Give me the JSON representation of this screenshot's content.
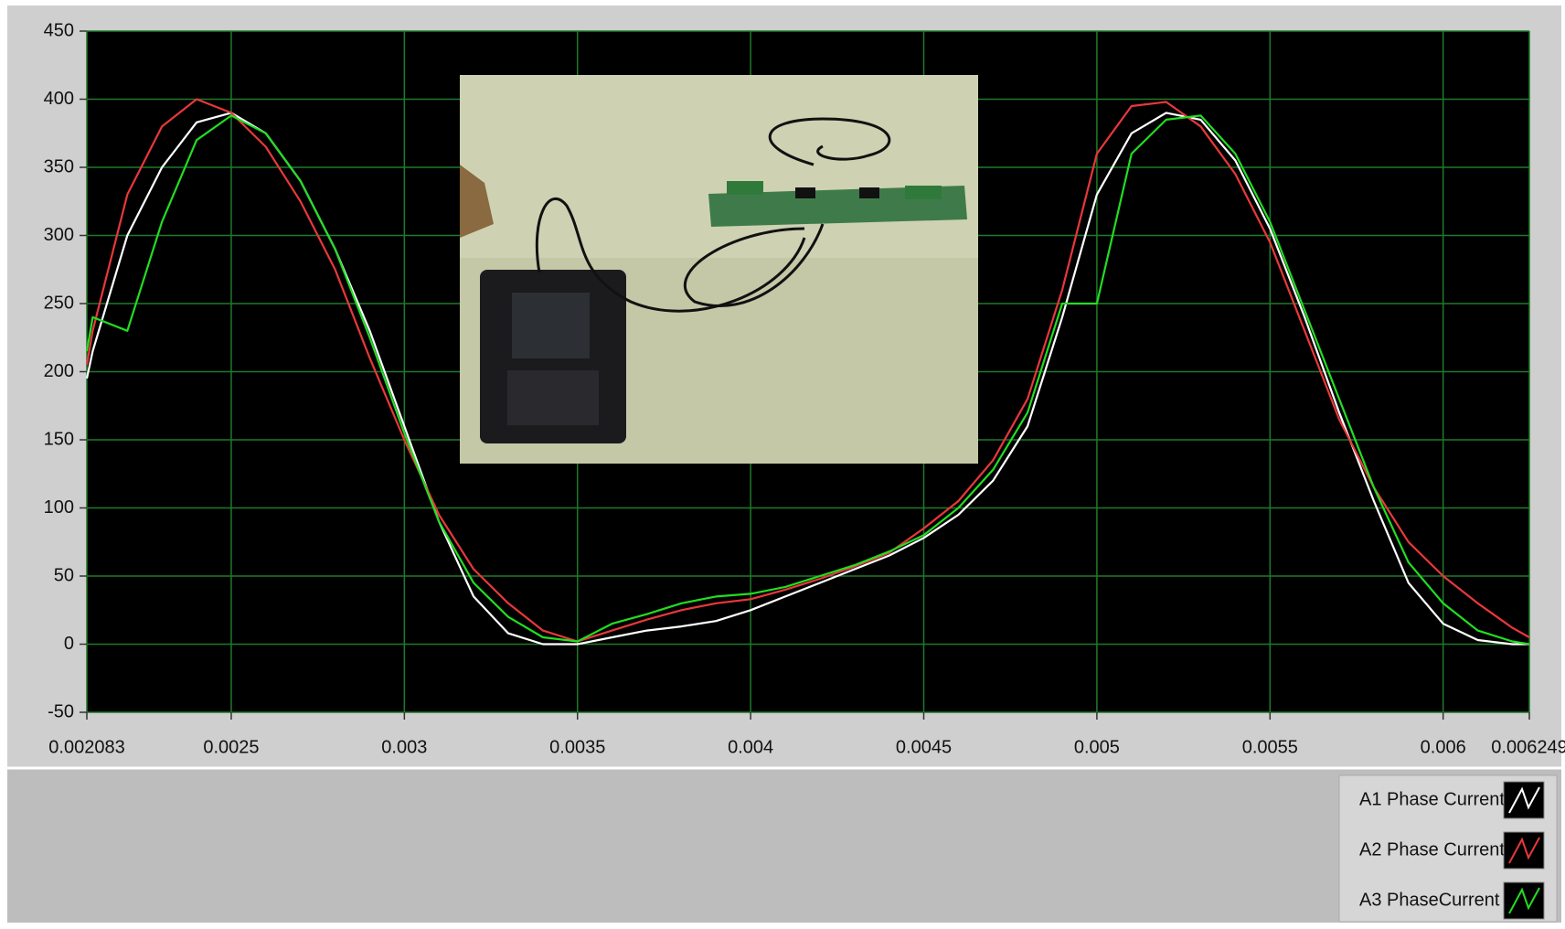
{
  "chart_data": {
    "type": "line",
    "x": [
      0.002083,
      0.0021,
      0.0022,
      0.0023,
      0.0024,
      0.0025,
      0.0026,
      0.0027,
      0.0028,
      0.0029,
      0.003,
      0.0031,
      0.0032,
      0.0033,
      0.0034,
      0.0035,
      0.0036,
      0.0037,
      0.0038,
      0.0039,
      0.004,
      0.0041,
      0.0042,
      0.0043,
      0.0044,
      0.0045,
      0.0046,
      0.0047,
      0.0048,
      0.0049,
      0.005,
      0.0051,
      0.0052,
      0.0053,
      0.0054,
      0.0055,
      0.0056,
      0.0057,
      0.0058,
      0.0059,
      0.006,
      0.0061,
      0.0062,
      0.006249
    ],
    "series": [
      {
        "name": "A1 Phase Current",
        "color": "#ffffff",
        "values": [
          195,
          215,
          300,
          350,
          383,
          390,
          375,
          340,
          290,
          230,
          160,
          90,
          35,
          8,
          0,
          0,
          5,
          10,
          13,
          17,
          25,
          35,
          45,
          55,
          65,
          78,
          95,
          120,
          160,
          240,
          330,
          375,
          390,
          385,
          355,
          305,
          240,
          170,
          105,
          45,
          15,
          3,
          0,
          0
        ]
      },
      {
        "name": "A2 Phase Current",
        "color": "#e8383b",
        "values": [
          205,
          230,
          330,
          380,
          400,
          390,
          365,
          325,
          275,
          210,
          150,
          95,
          55,
          30,
          10,
          2,
          10,
          18,
          25,
          30,
          33,
          40,
          48,
          57,
          67,
          85,
          105,
          135,
          180,
          260,
          360,
          395,
          398,
          380,
          345,
          295,
          230,
          165,
          115,
          75,
          50,
          30,
          12,
          5
        ]
      },
      {
        "name": "A3 PhaseCurrent",
        "color": "#22dd22",
        "values": [
          215,
          240,
          230,
          310,
          370,
          388,
          375,
          340,
          290,
          225,
          155,
          90,
          45,
          20,
          5,
          2,
          15,
          22,
          30,
          35,
          37,
          42,
          50,
          58,
          68,
          80,
          100,
          128,
          170,
          250,
          250,
          360,
          385,
          388,
          360,
          310,
          245,
          180,
          115,
          60,
          30,
          10,
          2,
          0
        ]
      }
    ],
    "xlim": [
      0.002083,
      0.006249
    ],
    "xticks": [
      0.002083,
      0.0025,
      0.003,
      0.0035,
      0.004,
      0.0045,
      0.005,
      0.0055,
      0.006,
      0.006249
    ],
    "ylim": [
      -50,
      450
    ],
    "yticks": [
      -50,
      0,
      50,
      100,
      150,
      200,
      250,
      300,
      350,
      400,
      450
    ],
    "grid": true,
    "legend": "bottom-right"
  }
}
